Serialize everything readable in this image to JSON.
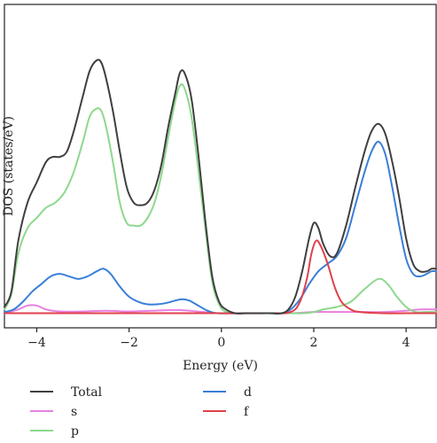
{
  "chart_data": {
    "type": "line",
    "xlabel": "Energy (eV)",
    "ylabel": "DOS (states/eV)",
    "title": "",
    "xlim": [
      -4.7,
      4.65
    ],
    "ylim": [
      0,
      1.0
    ],
    "x_ticks": [
      -4,
      -2,
      0,
      2,
      4
    ],
    "x_tick_labels": [
      "−4",
      "−2",
      "0",
      "2",
      "4"
    ],
    "show_y_ticks": false,
    "grid": false,
    "legend_position": "bottom",
    "series": [
      {
        "name": "Total",
        "color": "#3f3f3f",
        "x": [
          -4.7,
          -4.55,
          -4.4,
          -4.2,
          -4.0,
          -3.8,
          -3.65,
          -3.5,
          -3.35,
          -3.2,
          -3.0,
          -2.85,
          -2.7,
          -2.6,
          -2.5,
          -2.35,
          -2.2,
          -2.05,
          -1.9,
          -1.75,
          -1.6,
          -1.45,
          -1.3,
          -1.15,
          -1.0,
          -0.9,
          -0.8,
          -0.65,
          -0.5,
          -0.35,
          -0.2,
          -0.05,
          0.1,
          0.3,
          0.5,
          0.7,
          0.9,
          1.1,
          1.3,
          1.45,
          1.6,
          1.75,
          1.9,
          2.0,
          2.1,
          2.2,
          2.35,
          2.5,
          2.7,
          2.9,
          3.1,
          3.25,
          3.4,
          3.55,
          3.7,
          3.85,
          4.0,
          4.15,
          4.3,
          4.45,
          4.55,
          4.65
        ],
        "y": [
          0.03,
          0.09,
          0.29,
          0.44,
          0.52,
          0.6,
          0.62,
          0.62,
          0.64,
          0.72,
          0.86,
          0.96,
          1.0,
          0.99,
          0.93,
          0.8,
          0.64,
          0.5,
          0.44,
          0.43,
          0.44,
          0.49,
          0.59,
          0.74,
          0.87,
          0.95,
          0.95,
          0.85,
          0.63,
          0.37,
          0.15,
          0.05,
          0.02,
          0.005,
          0.005,
          0.005,
          0.005,
          0.005,
          0.005,
          0.02,
          0.07,
          0.17,
          0.3,
          0.36,
          0.34,
          0.28,
          0.23,
          0.24,
          0.35,
          0.5,
          0.64,
          0.72,
          0.75,
          0.71,
          0.6,
          0.46,
          0.3,
          0.2,
          0.17,
          0.17,
          0.18,
          0.18
        ]
      },
      {
        "name": "s",
        "color": "#e880e0",
        "x": [
          -4.7,
          -4.4,
          -4.2,
          -4.0,
          -3.8,
          -3.5,
          -3.0,
          -2.5,
          -2.0,
          -1.5,
          -1.0,
          -0.7,
          -0.4,
          0.0,
          0.5,
          1.0,
          1.5,
          2.0,
          2.5,
          3.0,
          3.5,
          4.0,
          4.3,
          4.65
        ],
        "y": [
          0.005,
          0.02,
          0.035,
          0.035,
          0.02,
          0.012,
          0.012,
          0.015,
          0.012,
          0.015,
          0.018,
          0.015,
          0.01,
          0.005,
          0.005,
          0.005,
          0.005,
          0.01,
          0.01,
          0.01,
          0.01,
          0.015,
          0.02,
          0.02
        ]
      },
      {
        "name": "p",
        "color": "#8dd88d",
        "x": [
          -4.7,
          -4.55,
          -4.4,
          -4.2,
          -4.0,
          -3.8,
          -3.6,
          -3.4,
          -3.2,
          -3.0,
          -2.85,
          -2.7,
          -2.6,
          -2.5,
          -2.35,
          -2.2,
          -2.05,
          -1.9,
          -1.75,
          -1.6,
          -1.45,
          -1.3,
          -1.15,
          -1.0,
          -0.9,
          -0.8,
          -0.65,
          -0.5,
          -0.35,
          -0.2,
          -0.05,
          0.1,
          0.3,
          0.6,
          1.0,
          1.4,
          1.8,
          2.0,
          2.2,
          2.5,
          2.8,
          3.1,
          3.4,
          3.6,
          3.8,
          4.0,
          4.2,
          4.4,
          4.65
        ],
        "y": [
          0.02,
          0.08,
          0.24,
          0.34,
          0.38,
          0.42,
          0.44,
          0.48,
          0.56,
          0.68,
          0.78,
          0.81,
          0.8,
          0.74,
          0.6,
          0.44,
          0.36,
          0.35,
          0.35,
          0.38,
          0.44,
          0.55,
          0.7,
          0.84,
          0.9,
          0.89,
          0.78,
          0.57,
          0.34,
          0.13,
          0.04,
          0.01,
          0.005,
          0.005,
          0.005,
          0.005,
          0.005,
          0.01,
          0.02,
          0.03,
          0.05,
          0.1,
          0.14,
          0.12,
          0.07,
          0.03,
          0.01,
          0.01,
          0.01
        ]
      },
      {
        "name": "d",
        "color": "#3a7fd6",
        "x": [
          -4.7,
          -4.5,
          -4.3,
          -4.1,
          -3.9,
          -3.7,
          -3.5,
          -3.3,
          -3.1,
          -2.9,
          -2.7,
          -2.55,
          -2.4,
          -2.2,
          -2.0,
          -1.8,
          -1.6,
          -1.4,
          -1.2,
          -1.0,
          -0.85,
          -0.7,
          -0.5,
          -0.3,
          -0.1,
          0.2,
          0.6,
          1.0,
          1.3,
          1.5,
          1.7,
          1.9,
          2.1,
          2.3,
          2.5,
          2.7,
          2.9,
          3.1,
          3.25,
          3.4,
          3.55,
          3.7,
          3.85,
          4.0,
          4.15,
          4.3,
          4.45,
          4.55,
          4.65
        ],
        "y": [
          0.01,
          0.02,
          0.05,
          0.09,
          0.12,
          0.15,
          0.16,
          0.15,
          0.14,
          0.15,
          0.17,
          0.18,
          0.16,
          0.11,
          0.07,
          0.05,
          0.04,
          0.04,
          0.045,
          0.055,
          0.06,
          0.055,
          0.035,
          0.015,
          0.005,
          0.005,
          0.005,
          0.005,
          0.005,
          0.02,
          0.06,
          0.12,
          0.17,
          0.2,
          0.23,
          0.3,
          0.43,
          0.56,
          0.64,
          0.68,
          0.63,
          0.5,
          0.35,
          0.22,
          0.16,
          0.15,
          0.16,
          0.17,
          0.17
        ]
      },
      {
        "name": "f",
        "color": "#e0404a",
        "x": [
          -4.7,
          -4.0,
          -3.0,
          -2.0,
          -1.0,
          0.0,
          1.0,
          1.5,
          1.7,
          1.85,
          1.95,
          2.05,
          2.15,
          2.3,
          2.45,
          2.6,
          2.8,
          3.0,
          3.5,
          4.0,
          4.65
        ],
        "y": [
          0.005,
          0.005,
          0.005,
          0.005,
          0.005,
          0.005,
          0.005,
          0.01,
          0.05,
          0.14,
          0.24,
          0.29,
          0.27,
          0.2,
          0.11,
          0.05,
          0.02,
          0.01,
          0.005,
          0.005,
          0.005
        ]
      }
    ]
  }
}
